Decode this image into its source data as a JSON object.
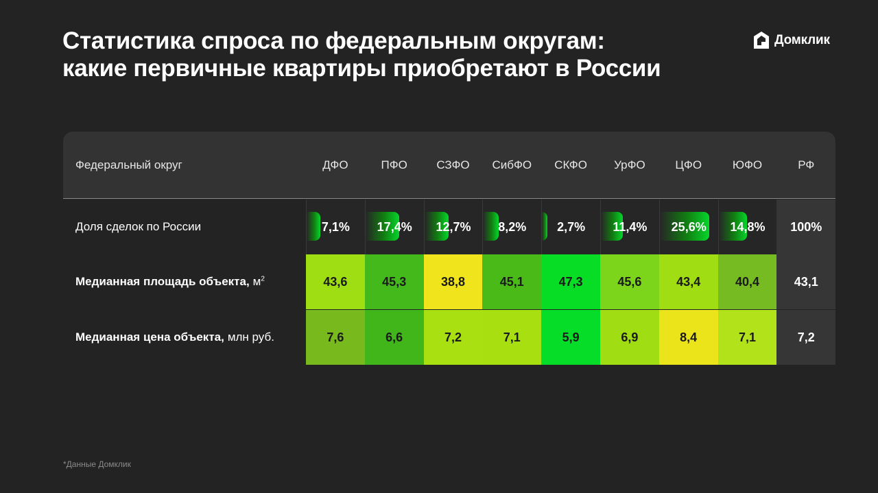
{
  "title": {
    "line1": "Статистика спроса по федеральным округам:",
    "line2": "какие первичные квартиры приобретают в России"
  },
  "logo": {
    "text": "Домклик",
    "icon": "house-logo-icon"
  },
  "footnote": "*Данные Домклик",
  "chart_data": {
    "type": "table",
    "header_label": "Федеральный округ",
    "columns": [
      "ДФО",
      "ПФО",
      "СЗФО",
      "СибФО",
      "СКФО",
      "УрФО",
      "ЦФО",
      "ЮФО",
      "РФ"
    ],
    "rows": [
      {
        "label": "Доля сделок по России",
        "unit": "",
        "values": [
          7.1,
          17.4,
          12.7,
          8.2,
          2.7,
          11.4,
          25.6,
          14.8,
          100
        ],
        "display": [
          "7,1%",
          "17,4%",
          "12,7%",
          "8,2%",
          "2,7%",
          "11,4%",
          "25,6%",
          "14,8%",
          "100%"
        ]
      },
      {
        "label": "Медианная площадь объекта,",
        "unit": "м",
        "unit_sup": "2",
        "values": [
          43.6,
          45.3,
          38.8,
          45.1,
          47.3,
          45.6,
          43.4,
          40.4,
          43.1
        ],
        "display": [
          "43,6",
          "45,3",
          "38,8",
          "45,1",
          "47,3",
          "45,6",
          "43,4",
          "40,4",
          "43,1"
        ],
        "colors": [
          "#9ede12",
          "#43b91c",
          "#f0e41c",
          "#4aba18",
          "#07dd24",
          "#7cd51a",
          "#a0dd12",
          "#77bb22",
          ""
        ]
      },
      {
        "label": "Медианная цена объекта,",
        "unit": "млн руб.",
        "unit_sup": "",
        "values": [
          7.6,
          6.6,
          7.2,
          7.1,
          5.9,
          6.9,
          8.4,
          7.1,
          7.2
        ],
        "display": [
          "7,6",
          "6,6",
          "7,2",
          "7,1",
          "5,9",
          "6,9",
          "8,4",
          "7,1",
          "7,2"
        ],
        "colors": [
          "#78b91e",
          "#41b61b",
          "#a9e012",
          "#a8df10",
          "#05dd28",
          "#a0dd12",
          "#ece41a",
          "#b1e21a",
          ""
        ]
      }
    ]
  }
}
